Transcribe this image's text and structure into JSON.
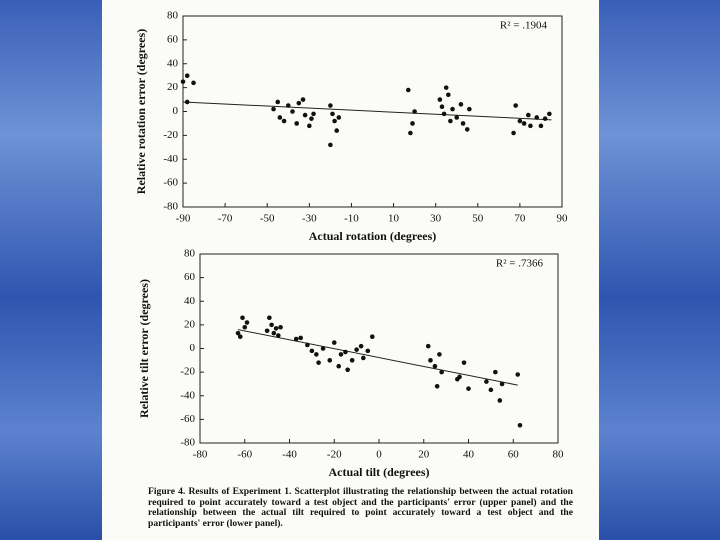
{
  "chart_data": [
    {
      "type": "scatter",
      "y_label": "Relative rotation error (degrees)",
      "x_label": "Actual rotation (degrees)",
      "annotation": "R² = .1904",
      "x": [
        -90,
        -88,
        -85,
        -88,
        -45,
        -47,
        -44,
        -42,
        -40,
        -38,
        -36,
        -35,
        -33,
        -32,
        -30,
        -29,
        -28,
        -20,
        -20,
        -19,
        -18,
        -17,
        -16,
        17,
        18,
        19,
        20,
        32,
        33,
        34,
        35,
        36,
        37,
        38,
        40,
        42,
        43,
        45,
        46,
        67,
        68,
        70,
        72,
        74,
        75,
        78,
        80,
        82,
        84
      ],
      "y": [
        25,
        30,
        24,
        8,
        8,
        2,
        -5,
        -8,
        5,
        0,
        -10,
        7,
        10,
        -3,
        -12,
        -6,
        -2,
        -28,
        5,
        -2,
        -8,
        -16,
        -5,
        18,
        -18,
        -10,
        0,
        10,
        4,
        -2,
        20,
        14,
        -8,
        2,
        -5,
        6,
        -10,
        -15,
        2,
        -18,
        5,
        -8,
        -10,
        -3,
        -12,
        -5,
        -12,
        -6,
        -2
      ],
      "trend_line": {
        "x": [
          -90,
          85
        ],
        "y": [
          8,
          -7
        ]
      },
      "color": "#111111",
      "xlim": [
        -90,
        90
      ],
      "xticks": [
        -90,
        -70,
        -50,
        -30,
        -10,
        10,
        30,
        50,
        70,
        90
      ],
      "ylim": [
        -80,
        80
      ],
      "yticks": [
        -80,
        -60,
        -40,
        -20,
        0,
        20,
        40,
        60,
        80
      ]
    },
    {
      "type": "scatter",
      "y_label": "Relative tilt error (degrees)",
      "x_label": "Actual tilt (degrees)",
      "annotation": "R² = .7366",
      "x": [
        -63,
        -62,
        -61,
        -60,
        -59,
        -50,
        -49,
        -48,
        -47,
        -46,
        -45,
        -44,
        -37,
        -35,
        -32,
        -30,
        -28,
        -27,
        -25,
        -22,
        -20,
        -18,
        -17,
        -15,
        -14,
        -12,
        -10,
        -8,
        -7,
        -5,
        -3,
        22,
        23,
        25,
        26,
        27,
        28,
        35,
        36,
        38,
        40,
        48,
        50,
        52,
        54,
        55,
        62,
        63
      ],
      "y": [
        13,
        10,
        26,
        18,
        22,
        15,
        26,
        20,
        13,
        17,
        11,
        18,
        8,
        9,
        3,
        -2,
        -5,
        -12,
        0,
        -10,
        5,
        -15,
        -5,
        -3,
        -18,
        -10,
        -1,
        2,
        -8,
        -2,
        10,
        2,
        -10,
        -15,
        -32,
        -5,
        -20,
        -26,
        -24,
        -12,
        -34,
        -28,
        -35,
        -20,
        -44,
        -30,
        -22,
        -65
      ],
      "trend_line": {
        "x": [
          -63,
          62
        ],
        "y": [
          16,
          -31
        ]
      },
      "color": "#111111",
      "xlim": [
        -80,
        80
      ],
      "xticks": [
        -80,
        -60,
        -40,
        -20,
        0,
        20,
        40,
        60,
        80
      ],
      "ylim": [
        -80,
        80
      ],
      "yticks": [
        -80,
        -60,
        -40,
        -20,
        0,
        20,
        40,
        60,
        80
      ]
    }
  ],
  "caption": "Figure 4. Results of Experiment 1. Scatterplot illustrating the relationship between the actual rotation required to point accurately toward a test object and the participants' error (upper panel) and the relationship between the actual tilt required to point accurately toward a test object and the participants' error (lower panel)."
}
